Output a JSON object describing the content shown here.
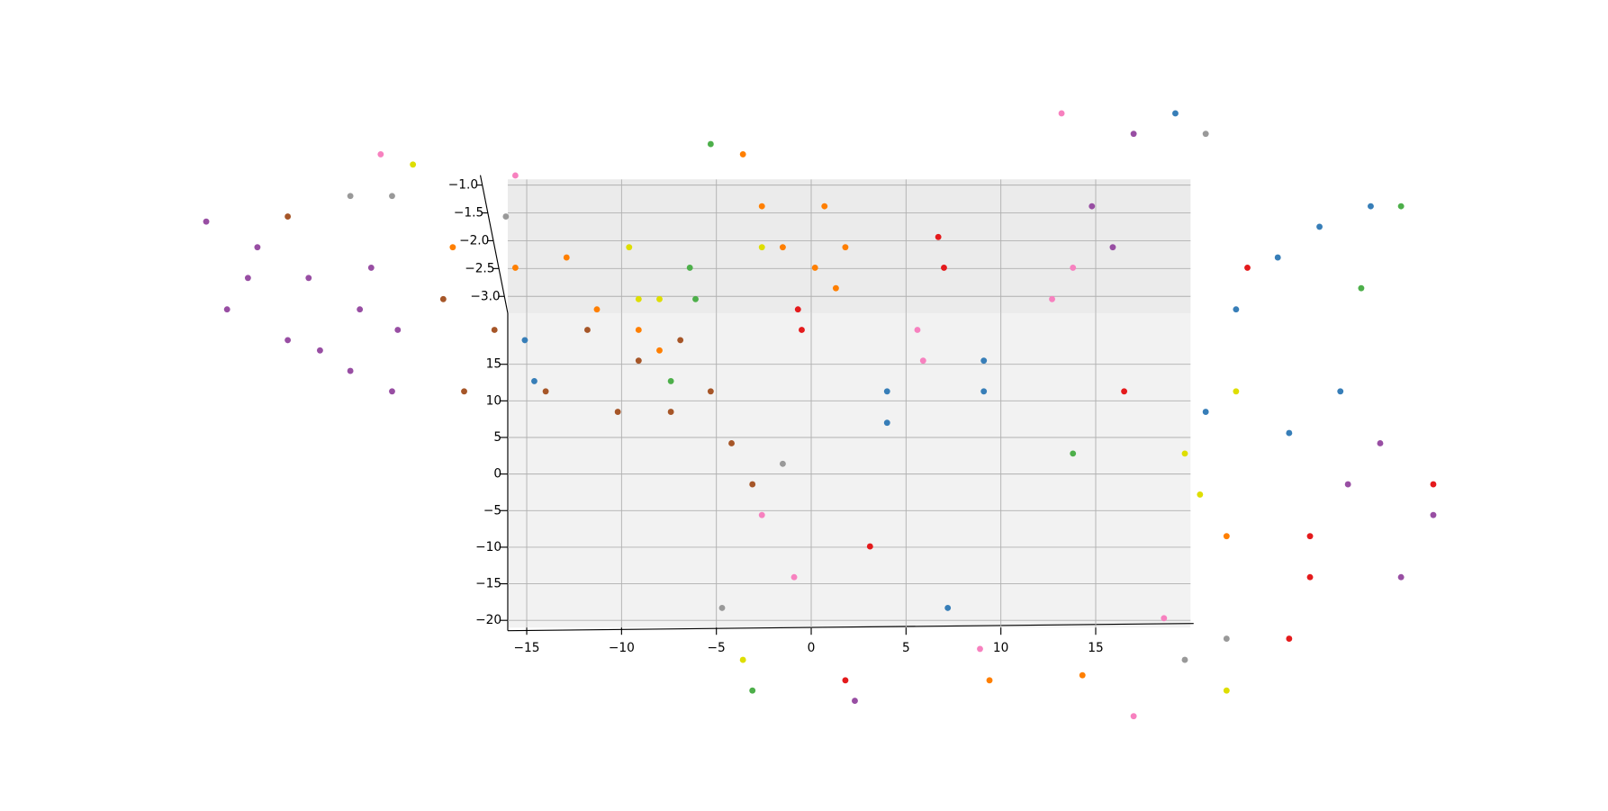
{
  "chart_data": {
    "type": "scatter3d",
    "xlim": [
      -16,
      20
    ],
    "ylim": [
      -21,
      22
    ],
    "zlim": [
      -3.3,
      -0.9
    ],
    "xticks": [
      {
        "value": -15,
        "label": "−15"
      },
      {
        "value": -10,
        "label": "−10"
      },
      {
        "value": -5,
        "label": "−5"
      },
      0,
      5,
      10,
      15
    ],
    "yticks": [
      {
        "value": -20,
        "label": "−20"
      },
      {
        "value": -15,
        "label": "−15"
      },
      {
        "value": -10,
        "label": "−10"
      },
      {
        "value": -5,
        "label": "−5"
      },
      0,
      5,
      10,
      15
    ],
    "zticks": [
      {
        "value": -3,
        "label": "−3.0"
      },
      {
        "value": -2.5,
        "label": "−2.5"
      },
      {
        "value": -2,
        "label": "−2.0"
      },
      {
        "value": -1.5,
        "label": "−1.5"
      },
      {
        "value": -1,
        "label": "−1.0"
      }
    ],
    "grid": true,
    "series": [
      {
        "color": "#984ea3",
        "x": [
          -31.9,
          -29.2,
          -26.5,
          -23.8,
          -21.8,
          -30.8,
          -27.6,
          -24.3,
          -22.1,
          -29.7,
          -25.9,
          -23.2,
          14.8,
          15.9,
          17.0,
          30.0,
          31.1,
          28.3,
          2.3,
          32.8
        ],
        "y": [
          34.5,
          31.0,
          26.8,
          22.5,
          19.7,
          22.5,
          18.3,
          14.1,
          11.3,
          26.8,
          16.9,
          28.2,
          36.6,
          31.0,
          46.5,
          4.2,
          -14.1,
          -1.4,
          -31.0,
          -5.6
        ],
        "z": [
          -3.3,
          -3.3,
          -3.3,
          -3.3,
          -3.3,
          -3.3,
          -3.3,
          -3.3,
          -3.3,
          -3.3,
          -3.3,
          -3.3,
          -3.3,
          -3.3,
          -3.3,
          -3.3,
          -3.3,
          -3.3,
          -3.3,
          -3.3
        ]
      },
      {
        "color": "#a65628",
        "x": [
          -19.4,
          -16.7,
          -14.0,
          -11.8,
          -9.1,
          -6.9,
          -5.3,
          -4.2,
          -3.1,
          -10.2,
          -18.3,
          -7.4,
          -27.6
        ],
        "y": [
          23.9,
          19.7,
          11.3,
          19.7,
          15.5,
          18.3,
          11.3,
          4.2,
          -1.4,
          8.5,
          11.3,
          8.5,
          35.2
        ],
        "z": [
          -3.3,
          -3.3,
          -3.3,
          -3.3,
          -3.3,
          -3.3,
          -3.3,
          -3.3,
          -3.3,
          -3.3,
          -3.3,
          -3.3,
          -3.3
        ]
      },
      {
        "color": "#ff7f00",
        "x": [
          -18.9,
          -15.6,
          -12.9,
          -11.3,
          -9.1,
          -8.0,
          -3.6,
          -2.6,
          -1.5,
          0.7,
          1.8,
          1.3,
          0.2,
          9.4,
          14.3,
          21.9
        ],
        "y": [
          31.0,
          28.2,
          29.6,
          22.5,
          19.7,
          16.9,
          43.7,
          36.6,
          31.0,
          36.6,
          31.0,
          25.4,
          28.2,
          -28.2,
          -27.5,
          -8.5
        ],
        "z": [
          -3.3,
          -3.3,
          -3.3,
          -3.3,
          -3.3,
          -3.3,
          -3.3,
          -3.3,
          -3.3,
          -3.3,
          -3.3,
          -3.3,
          -3.3,
          -3.3,
          -3.3,
          -3.3
        ]
      },
      {
        "color": "#377eb8",
        "x": [
          -15.1,
          -14.6,
          4.0,
          4.0,
          9.1,
          9.1,
          22.4,
          24.6,
          26.8,
          27.9,
          25.2,
          20.8,
          29.5,
          7.2,
          19.2
        ],
        "y": [
          18.3,
          12.7,
          11.3,
          7.0,
          15.5,
          11.3,
          22.5,
          29.6,
          33.8,
          11.3,
          5.6,
          8.5,
          36.6,
          -18.3,
          49.3
        ],
        "z": [
          -3.3,
          -3.3,
          -3.3,
          -3.3,
          -3.3,
          -3.3,
          -3.3,
          -3.3,
          -3.3,
          -3.3,
          -3.3,
          -3.3,
          -3.3,
          -3.3,
          -3.3
        ]
      },
      {
        "color": "#e41a1c",
        "x": [
          -0.7,
          -0.5,
          6.7,
          7.0,
          16.5,
          23.0,
          26.3,
          26.3,
          25.2,
          3.1,
          1.8,
          32.8
        ],
        "y": [
          22.5,
          19.7,
          32.4,
          28.2,
          11.3,
          28.2,
          -8.5,
          -14.1,
          -22.5,
          -9.9,
          -28.2,
          -1.4
        ],
        "z": [
          -3.3,
          -3.3,
          -3.3,
          -3.3,
          -3.3,
          -3.3,
          -3.3,
          -3.3,
          -3.3,
          -3.3,
          -3.3,
          -3.3
        ]
      },
      {
        "color": "#f781bf",
        "x": [
          5.6,
          5.9,
          12.7,
          13.8,
          -2.6,
          -0.9,
          17.0,
          8.9,
          13.2,
          -22.7,
          18.6,
          -15.6
        ],
        "y": [
          19.7,
          15.5,
          23.9,
          28.2,
          -5.6,
          -14.1,
          -33.1,
          -23.9,
          49.3,
          43.7,
          -19.7,
          40.8
        ],
        "z": [
          -3.3,
          -3.3,
          -3.3,
          -3.3,
          -3.3,
          -3.3,
          -3.3,
          -3.3,
          -3.3,
          -3.3,
          -3.3,
          -3.3
        ]
      },
      {
        "color": "#4daf4a",
        "x": [
          -6.4,
          -6.1,
          -5.3,
          13.8,
          31.1,
          29.0,
          -7.4,
          -3.1
        ],
        "y": [
          28.2,
          23.9,
          45.1,
          2.8,
          36.6,
          25.4,
          12.7,
          -29.6
        ],
        "z": [
          -3.3,
          -3.3,
          -3.3,
          -3.3,
          -3.3,
          -3.3,
          -3.3,
          -3.3
        ]
      },
      {
        "color": "#dede00",
        "x": [
          -9.6,
          -9.1,
          -8.0,
          -2.6,
          19.7,
          20.5,
          -3.6,
          21.9,
          22.4,
          -21.0
        ],
        "y": [
          31.0,
          23.9,
          23.9,
          31.0,
          2.8,
          -2.8,
          -25.4,
          -29.6,
          11.3,
          42.3
        ],
        "z": [
          -3.3,
          -3.3,
          -3.3,
          -3.3,
          -3.3,
          -3.3,
          -3.3,
          -3.3,
          -3.3,
          -3.3
        ]
      },
      {
        "color": "#999999",
        "x": [
          -24.3,
          -22.1,
          -16.1,
          -4.7,
          19.7,
          21.9,
          20.8,
          -1.5
        ],
        "y": [
          38.0,
          38.0,
          35.2,
          -18.3,
          -25.4,
          -22.5,
          46.5,
          1.4
        ],
        "z": [
          -3.3,
          -3.3,
          -3.3,
          -3.3,
          -3.3,
          -3.3,
          -3.3,
          -3.3
        ]
      }
    ]
  }
}
